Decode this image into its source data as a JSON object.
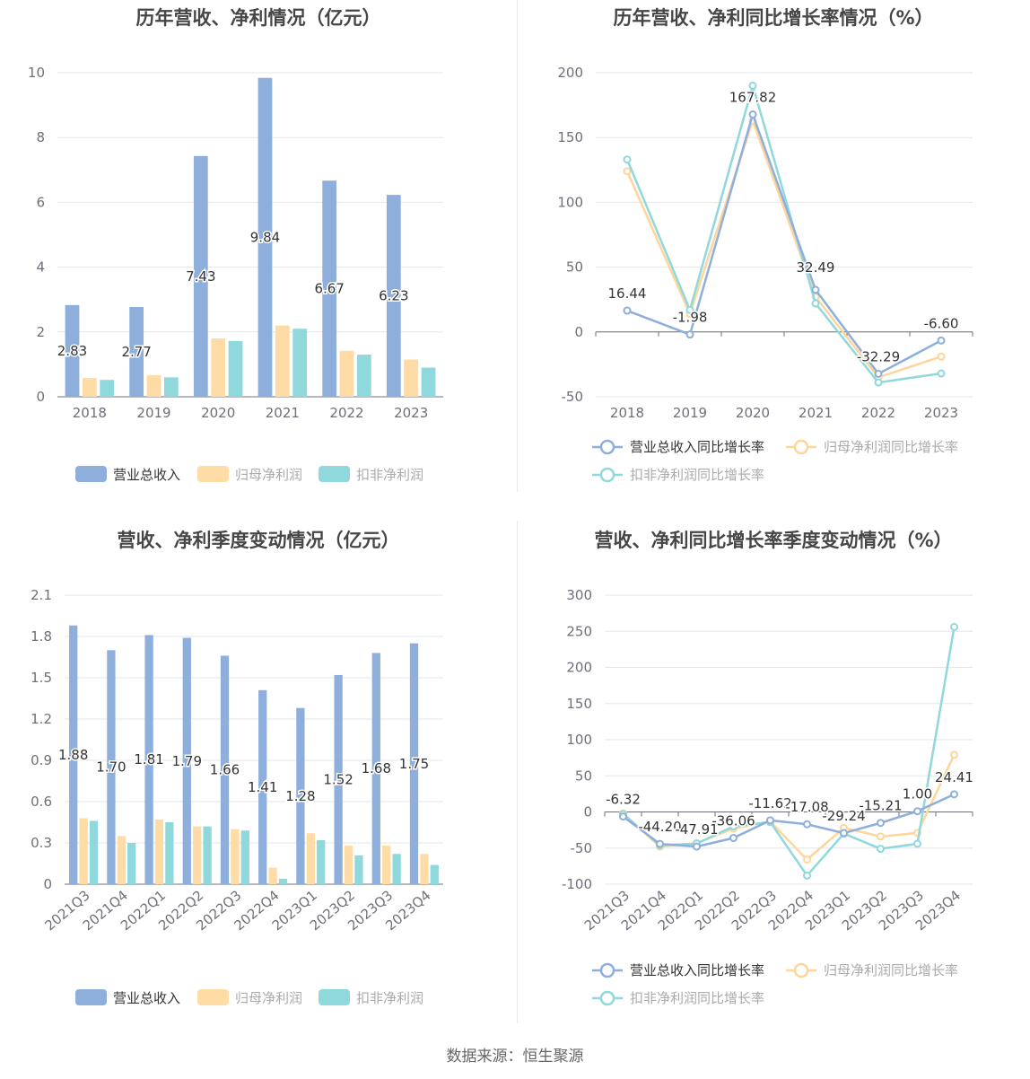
{
  "source": "数据来源：恒生聚源",
  "colors": {
    "revenue": "#8eaedc",
    "net": "#ffdba6",
    "deducted": "#8fd8dc",
    "revenue_line": "#8eaedc",
    "net_line": "#ffd599",
    "deducted_line": "#8fd8dc"
  },
  "chart_data": [
    {
      "type": "bar",
      "title": "历年营收、净利情况（亿元）",
      "categories": [
        "2018",
        "2019",
        "2020",
        "2021",
        "2022",
        "2023"
      ],
      "ylim": [
        0,
        10
      ],
      "yticks": [
        "0",
        "2",
        "4",
        "6",
        "8",
        "10"
      ],
      "yticks_values": [
        0,
        2,
        4,
        6,
        8,
        10
      ],
      "series": [
        {
          "name": "营业总收入",
          "values": [
            2.83,
            2.77,
            7.43,
            9.84,
            6.67,
            6.23
          ],
          "labels": [
            "2.83",
            "2.77",
            "7.43",
            "9.84",
            "6.67",
            "6.23"
          ]
        },
        {
          "name": "归母净利润",
          "values": [
            0.58,
            0.67,
            1.8,
            2.2,
            1.42,
            1.15
          ]
        },
        {
          "name": "扣非净利润",
          "values": [
            0.52,
            0.6,
            1.72,
            2.1,
            1.3,
            0.9
          ]
        }
      ],
      "legend": "bottom",
      "grid": true
    },
    {
      "type": "line",
      "title": "历年营收、净利同比增长率情况（%）",
      "categories": [
        "2018",
        "2019",
        "2020",
        "2021",
        "2022",
        "2023"
      ],
      "ylim": [
        -50,
        200
      ],
      "yticks": [
        "-50",
        "0",
        "50",
        "100",
        "150",
        "200"
      ],
      "yticks_values": [
        -50,
        0,
        50,
        100,
        150,
        200
      ],
      "series": [
        {
          "name": "营业总收入同比增长率",
          "values": [
            16.44,
            -1.98,
            167.82,
            32.49,
            -32.29,
            -6.6
          ],
          "labels": [
            "16.44",
            "-1.98",
            "167.82",
            "32.49",
            "-32.29",
            "-6.60"
          ]
        },
        {
          "name": "归母净利润同比增长率",
          "values": [
            124,
            14,
            163,
            27,
            -35,
            -19
          ]
        },
        {
          "name": "扣非净利润同比增长率",
          "values": [
            133,
            17,
            190,
            22,
            -39,
            -32
          ]
        }
      ],
      "legend": "bottom",
      "grid": true
    },
    {
      "type": "bar",
      "title": "营收、净利季度变动情况（亿元）",
      "categories": [
        "2021Q3",
        "2021Q4",
        "2022Q1",
        "2022Q2",
        "2022Q3",
        "2022Q4",
        "2023Q1",
        "2023Q2",
        "2023Q3",
        "2023Q4"
      ],
      "ylim": [
        0,
        2.1
      ],
      "yticks": [
        "0",
        "0.3",
        "0.6",
        "0.9",
        "1.2",
        "1.5",
        "1.8",
        "2.1"
      ],
      "yticks_values": [
        0,
        0.3,
        0.6,
        0.9,
        1.2,
        1.5,
        1.8,
        2.1
      ],
      "series": [
        {
          "name": "营业总收入",
          "values": [
            1.88,
            1.7,
            1.81,
            1.79,
            1.66,
            1.41,
            1.28,
            1.52,
            1.68,
            1.75
          ],
          "labels": [
            "1.88",
            "1.70",
            "1.81",
            "1.79",
            "1.66",
            "1.41",
            "1.28",
            "1.52",
            "1.68",
            "1.75"
          ]
        },
        {
          "name": "归母净利润",
          "values": [
            0.48,
            0.35,
            0.47,
            0.42,
            0.4,
            0.12,
            0.37,
            0.28,
            0.28,
            0.22
          ]
        },
        {
          "name": "扣非净利润",
          "values": [
            0.46,
            0.3,
            0.45,
            0.42,
            0.39,
            0.04,
            0.32,
            0.21,
            0.22,
            0.14
          ]
        }
      ],
      "legend": "bottom",
      "grid": true
    },
    {
      "type": "line",
      "title": "营收、净利同比增长率季度变动情况（%）",
      "categories": [
        "2021Q3",
        "2021Q4",
        "2022Q1",
        "2022Q2",
        "2022Q3",
        "2022Q4",
        "2023Q1",
        "2023Q2",
        "2023Q3",
        "2023Q4"
      ],
      "ylim": [
        -100,
        300
      ],
      "yticks": [
        "-100",
        "-50",
        "0",
        "50",
        "100",
        "150",
        "200",
        "250",
        "300"
      ],
      "yticks_values": [
        -100,
        -50,
        0,
        50,
        100,
        150,
        200,
        250,
        300
      ],
      "series": [
        {
          "name": "营业总收入同比增长率",
          "values": [
            -6.32,
            -44.2,
            -47.91,
            -36.06,
            -11.62,
            -17.08,
            -29.24,
            -15.21,
            1.0,
            24.41
          ],
          "labels": [
            "-6.32",
            "-44.20",
            "-47.91",
            "-36.06",
            "-11.62",
            "-17.08",
            "-29.24",
            "-15.21",
            "1.00",
            "24.41"
          ]
        },
        {
          "name": "归母净利润同比增长率",
          "values": [
            -2,
            -48,
            -43,
            -23,
            -13,
            -66,
            -22,
            -34,
            -29,
            79
          ]
        },
        {
          "name": "扣非净利润同比增长率",
          "values": [
            -3,
            -46,
            -44,
            -20,
            -14,
            -88,
            -30,
            -51,
            -44,
            256
          ]
        }
      ],
      "legend": "bottom",
      "grid": true
    }
  ]
}
